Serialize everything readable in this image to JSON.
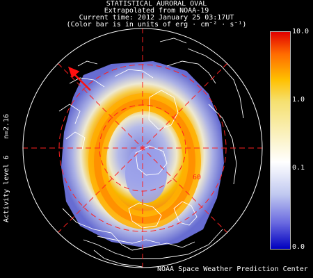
{
  "title": {
    "line1": "STATISTICAL AURORAL OVAL",
    "line2": "Extrapolated from NOAA-19",
    "line3": "Current time: 2012 January 25 03:17UT",
    "line4": "(Color bar is in units of erg · cm⁻² · s⁻¹)"
  },
  "side": {
    "n_value": "n=2.16",
    "activity": "Activity level 6"
  },
  "map": {
    "latitude_label": "60"
  },
  "colorbar": {
    "labels": [
      "10.0",
      "1.0",
      "0.1",
      "0.0"
    ]
  },
  "credit": "NOAA Space Weather Prediction Center",
  "colors": {
    "grid": "#ff2020",
    "arrow": "#ff1010",
    "coast": "#ffffff"
  }
}
